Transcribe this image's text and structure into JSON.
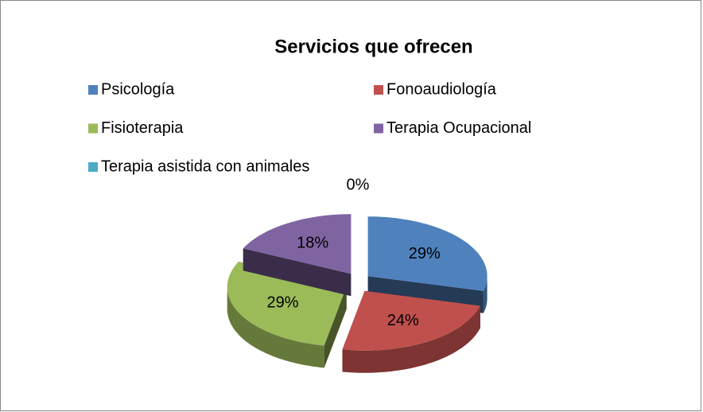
{
  "chart_data": {
    "type": "pie",
    "title": "Servicios que ofrecen",
    "categories": [
      "Psicología",
      "Fonoaudiología",
      "Fisioterapia",
      "Terapia Ocupacional",
      "Terapia asistida con animales"
    ],
    "values": [
      29,
      24,
      29,
      18,
      0
    ],
    "value_labels": [
      "29%",
      "24%",
      "29%",
      "18%",
      "0%"
    ],
    "colors": [
      "#4f81bd",
      "#c0504d",
      "#9bbb59",
      "#8064a2",
      "#4bacc6"
    ],
    "legend": "top",
    "exploded": true,
    "3d": true
  }
}
